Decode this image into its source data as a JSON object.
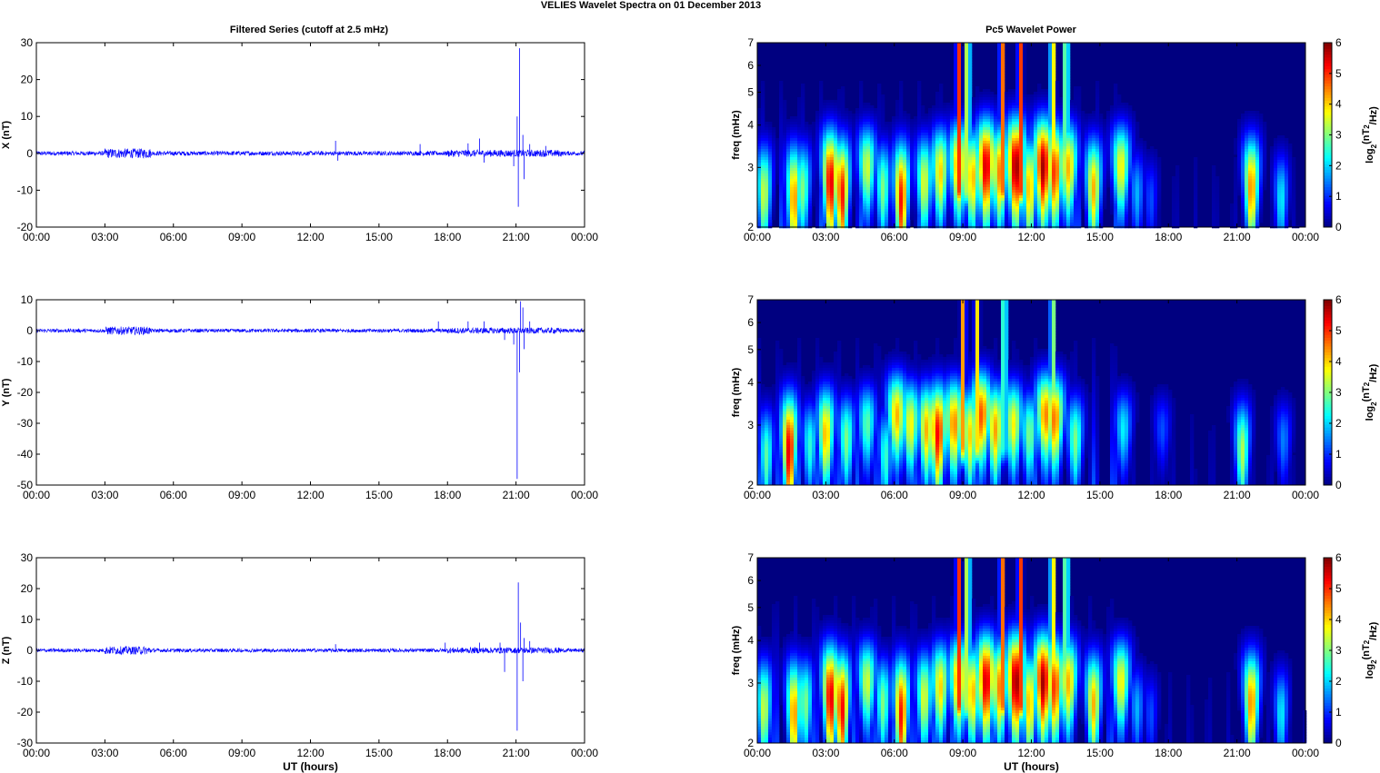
{
  "figure": {
    "title": "VELIES Wavelet Spectra on 01 December  2013",
    "left_title": "Filtered Series (cutoff at 2.5 mHz)",
    "right_title": "Pc5 Wavelet Power",
    "xlabel": "UT (hours)"
  },
  "chart_data": [
    {
      "type": "line",
      "ylabel": "X (nT)",
      "xlabel": "",
      "xlim": [
        0,
        24
      ],
      "ylim": [
        -20,
        30
      ],
      "x_ticks": [
        "00:00",
        "03:00",
        "06:00",
        "09:00",
        "12:00",
        "15:00",
        "18:00",
        "21:00",
        "00:00"
      ],
      "y_ticks": [
        -20,
        -10,
        0,
        10,
        20,
        30
      ],
      "color": "#0000ff",
      "baseline_noise": 0.6,
      "noise_burst": [
        3.0,
        5.0
      ],
      "spikes": [
        [
          13.1,
          3.4
        ],
        [
          13.2,
          -2
        ],
        [
          16.8,
          2.5
        ],
        [
          18.9,
          2.7
        ],
        [
          19.4,
          4
        ],
        [
          19.6,
          -2.5
        ],
        [
          20.9,
          -3.5
        ],
        [
          21.05,
          10
        ],
        [
          21.1,
          -14.5
        ],
        [
          21.15,
          28.5
        ],
        [
          21.3,
          5
        ],
        [
          21.35,
          -7
        ],
        [
          21.6,
          2.5
        ],
        [
          22.3,
          2
        ]
      ]
    },
    {
      "type": "line",
      "ylabel": "Y (nT)",
      "xlabel": "",
      "xlim": [
        0,
        24
      ],
      "ylim": [
        -50,
        10
      ],
      "x_ticks": [
        "00:00",
        "03:00",
        "06:00",
        "09:00",
        "12:00",
        "15:00",
        "18:00",
        "21:00",
        "00:00"
      ],
      "y_ticks": [
        -50,
        -40,
        -30,
        -20,
        -10,
        0,
        10
      ],
      "color": "#0000ff",
      "baseline_noise": 0.6,
      "noise_burst": [
        3.0,
        5.0
      ],
      "spikes": [
        [
          17.6,
          3
        ],
        [
          18.9,
          3
        ],
        [
          19.6,
          3
        ],
        [
          20.5,
          -3
        ],
        [
          20.9,
          -4.5
        ],
        [
          21.05,
          -48
        ],
        [
          21.15,
          -13.5
        ],
        [
          21.2,
          9.5
        ],
        [
          21.3,
          7.5
        ],
        [
          21.35,
          -6
        ],
        [
          21.6,
          3
        ]
      ]
    },
    {
      "type": "line",
      "ylabel": "Z (nT)",
      "xlabel": "UT (hours)",
      "xlim": [
        0,
        24
      ],
      "ylim": [
        -30,
        30
      ],
      "x_ticks": [
        "00:00",
        "03:00",
        "06:00",
        "09:00",
        "12:00",
        "15:00",
        "18:00",
        "21:00",
        "00:00"
      ],
      "y_ticks": [
        -30,
        -20,
        -10,
        0,
        10,
        20,
        30
      ],
      "color": "#0000ff",
      "baseline_noise": 0.6,
      "noise_burst": [
        3.0,
        5.0
      ],
      "spikes": [
        [
          13.1,
          2
        ],
        [
          17.9,
          2.5
        ],
        [
          19.4,
          2.5
        ],
        [
          20.3,
          2.5
        ],
        [
          20.5,
          -7
        ],
        [
          21.05,
          -26
        ],
        [
          21.1,
          22
        ],
        [
          21.2,
          9
        ],
        [
          21.3,
          -10
        ],
        [
          21.35,
          4
        ],
        [
          21.6,
          3
        ]
      ]
    },
    {
      "type": "heatmap",
      "ylabel": "freq (mHz)",
      "xlabel": "",
      "xlim": [
        0,
        24
      ],
      "ylim": [
        2,
        7
      ],
      "y_scale": "log",
      "x_ticks": [
        "00:00",
        "03:00",
        "06:00",
        "09:00",
        "12:00",
        "15:00",
        "18:00",
        "21:00",
        "00:00"
      ],
      "y_ticks": [
        2,
        3,
        4,
        5,
        6,
        7
      ],
      "colorbar": {
        "label": "log2(nT2/Hz)",
        "range": [
          0,
          6
        ],
        "ticks": [
          0,
          1,
          2,
          3,
          4,
          5,
          6
        ],
        "colormap": "jet"
      },
      "blobs": [
        [
          0.3,
          2.5,
          3.5
        ],
        [
          1.6,
          2.4,
          4.5
        ],
        [
          2.0,
          2.6,
          3
        ],
        [
          3.2,
          2.7,
          5.5
        ],
        [
          3.7,
          2.5,
          5.2
        ],
        [
          4.8,
          3.0,
          3.5
        ],
        [
          5.5,
          2.6,
          3
        ],
        [
          6.3,
          2.4,
          5.2
        ],
        [
          7.3,
          2.7,
          3.6
        ],
        [
          8.0,
          2.9,
          4
        ],
        [
          8.8,
          3.0,
          4.5
        ],
        [
          9.4,
          2.8,
          4.2
        ],
        [
          10.0,
          3.0,
          5.6
        ],
        [
          10.6,
          2.9,
          4.5
        ],
        [
          11.3,
          3.0,
          5.9
        ],
        [
          11.9,
          2.6,
          4.2
        ],
        [
          12.5,
          3.0,
          5.8
        ],
        [
          13.0,
          2.9,
          5
        ],
        [
          13.6,
          3.0,
          4.2
        ],
        [
          14.7,
          2.6,
          4.2
        ],
        [
          15.9,
          3.0,
          3.8
        ],
        [
          16.6,
          2.5,
          1.8
        ],
        [
          17.2,
          2.4,
          1.2
        ],
        [
          21.6,
          2.6,
          4.5
        ],
        [
          22.9,
          2.4,
          2.2
        ]
      ],
      "streaks": [
        [
          8.8,
          5.2
        ],
        [
          9.2,
          4.8
        ],
        [
          10.7,
          5
        ],
        [
          11.5,
          5.2
        ],
        [
          12.9,
          5
        ],
        [
          13.5,
          4.5
        ]
      ]
    },
    {
      "type": "heatmap",
      "ylabel": "freq (mHz)",
      "xlabel": "",
      "xlim": [
        0,
        24
      ],
      "ylim": [
        2,
        7
      ],
      "y_scale": "log",
      "x_ticks": [
        "00:00",
        "03:00",
        "06:00",
        "09:00",
        "12:00",
        "15:00",
        "18:00",
        "21:00",
        "00:00"
      ],
      "y_ticks": [
        2,
        3,
        4,
        5,
        6,
        7
      ],
      "colorbar": {
        "label": "log2(nT2/Hz)",
        "range": [
          0,
          6
        ],
        "ticks": [
          0,
          1,
          2,
          3,
          4,
          5,
          6
        ],
        "colormap": "jet"
      },
      "blobs": [
        [
          0.4,
          2.4,
          2.8
        ],
        [
          1.4,
          2.5,
          5.5
        ],
        [
          2.3,
          2.6,
          2.5
        ],
        [
          3.0,
          2.8,
          4.2
        ],
        [
          3.9,
          2.7,
          3
        ],
        [
          4.8,
          3.0,
          2.8
        ],
        [
          5.6,
          2.4,
          2.6
        ],
        [
          6.1,
          3.2,
          4.2
        ],
        [
          6.7,
          3.0,
          3.8
        ],
        [
          7.4,
          2.9,
          4.2
        ],
        [
          7.9,
          2.8,
          5.3
        ],
        [
          8.6,
          3.0,
          4.5
        ],
        [
          9.3,
          2.8,
          4
        ],
        [
          9.8,
          3.2,
          4.8
        ],
        [
          10.4,
          2.9,
          4.3
        ],
        [
          11.2,
          3.0,
          3.8
        ],
        [
          11.9,
          2.8,
          3
        ],
        [
          12.6,
          3.2,
          4.5
        ],
        [
          13.0,
          3.1,
          4.6
        ],
        [
          13.9,
          2.7,
          3
        ],
        [
          16.0,
          2.9,
          2.2
        ],
        [
          17.7,
          2.9,
          1.2
        ],
        [
          21.2,
          2.5,
          3.3
        ],
        [
          23.0,
          2.7,
          1.5
        ]
      ],
      "streaks": [
        [
          9.0,
          4.5
        ],
        [
          9.6,
          4
        ],
        [
          10.8,
          4.2
        ],
        [
          12.9,
          4
        ]
      ]
    },
    {
      "type": "heatmap",
      "ylabel": "freq (mHz)",
      "xlabel": "UT (hours)",
      "xlim": [
        0,
        24
      ],
      "ylim": [
        2,
        7
      ],
      "y_scale": "log",
      "x_ticks": [
        "00:00",
        "03:00",
        "06:00",
        "09:00",
        "12:00",
        "15:00",
        "18:00",
        "21:00",
        "00:00"
      ],
      "y_ticks": [
        2,
        3,
        4,
        5,
        6,
        7
      ],
      "colorbar": {
        "label": "log2(nT2/Hz)",
        "range": [
          0,
          6
        ],
        "ticks": [
          0,
          1,
          2,
          3,
          4,
          5,
          6
        ],
        "colormap": "jet"
      },
      "blobs": [
        [
          0.3,
          2.5,
          3.5
        ],
        [
          1.6,
          2.4,
          4.5
        ],
        [
          2.1,
          2.6,
          3
        ],
        [
          3.2,
          2.7,
          5.5
        ],
        [
          3.7,
          2.5,
          5.3
        ],
        [
          4.8,
          3.0,
          3.5
        ],
        [
          5.5,
          2.6,
          3
        ],
        [
          6.3,
          2.4,
          5.2
        ],
        [
          7.3,
          2.7,
          3.6
        ],
        [
          8.0,
          2.9,
          4
        ],
        [
          8.8,
          3.0,
          4.5
        ],
        [
          9.4,
          2.8,
          4.2
        ],
        [
          10.0,
          3.0,
          5.6
        ],
        [
          10.6,
          2.9,
          4.5
        ],
        [
          11.3,
          3.0,
          5.9
        ],
        [
          11.9,
          2.6,
          4.2
        ],
        [
          12.5,
          3.0,
          5.8
        ],
        [
          13.0,
          2.9,
          5
        ],
        [
          13.6,
          3.0,
          4.2
        ],
        [
          14.7,
          2.6,
          4.2
        ],
        [
          15.9,
          3.0,
          3.8
        ],
        [
          16.6,
          2.5,
          1.8
        ],
        [
          17.2,
          2.4,
          1.2
        ],
        [
          21.6,
          2.6,
          4.5
        ],
        [
          22.9,
          2.4,
          2.2
        ]
      ],
      "streaks": [
        [
          8.8,
          5.2
        ],
        [
          9.2,
          4.8
        ],
        [
          10.7,
          5
        ],
        [
          11.5,
          5.2
        ],
        [
          12.9,
          5
        ],
        [
          13.5,
          4.5
        ]
      ]
    }
  ]
}
